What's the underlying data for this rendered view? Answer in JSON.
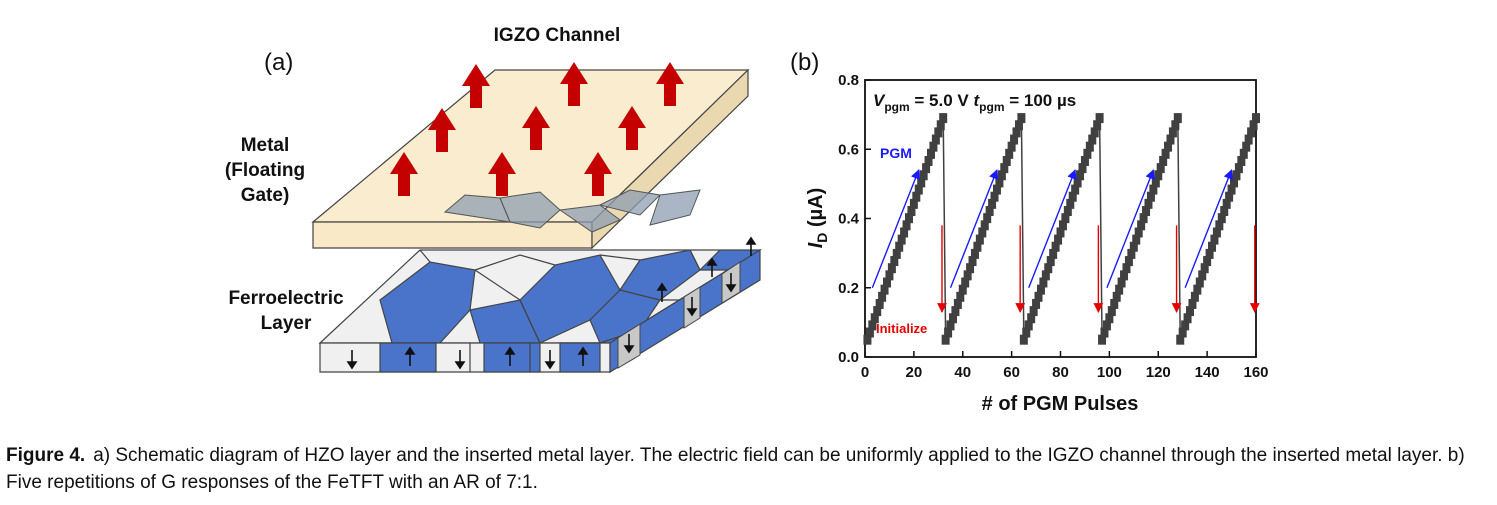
{
  "panel_a": {
    "label": "(a)",
    "top_label": "IGZO Channel",
    "metal_label_lines": [
      "Metal",
      "(Floating",
      "Gate)"
    ],
    "ferro_label_lines": [
      "Ferroelectric",
      "Layer"
    ],
    "colors": {
      "metal": "#f9e9c7",
      "domain_up": "#4a74c9",
      "domain_light": "#f0f0f0",
      "arrow": "#c40000"
    }
  },
  "panel_b": {
    "label": "(b)",
    "annotation_vpgm": "V",
    "annotation_vpgm_sub": "pgm",
    "annotation_vpgm_val": " = 5.0 V ",
    "annotation_tpgm": "t",
    "annotation_tpgm_sub": "pgm",
    "annotation_tpgm_val": " = 100 µs",
    "pgm_label": "PGM",
    "init_label": "Initialize",
    "colors": {
      "data": "#404040",
      "pgm": "#1a1aff",
      "init": "#e60000"
    }
  },
  "chart_data": {
    "type": "line",
    "xlabel": "# of PGM Pulses",
    "ylabel": "I",
    "ylabel_sub": "D",
    "ylabel_unit": " (µA)",
    "xlim": [
      0,
      160
    ],
    "ylim": [
      0,
      0.8
    ],
    "xticks": [
      "0",
      "20",
      "40",
      "60",
      "80",
      "100",
      "120",
      "140",
      "160"
    ],
    "yticks": [
      "0.0",
      "0.2",
      "0.4",
      "0.6",
      "0.8"
    ],
    "series": [
      {
        "x_start": 1,
        "x_end": 32,
        "y_start": 0.05,
        "y_end": 0.69
      },
      {
        "x_start": 33,
        "x_end": 64,
        "y_start": 0.05,
        "y_end": 0.69
      },
      {
        "x_start": 65,
        "x_end": 96,
        "y_start": 0.05,
        "y_end": 0.69
      },
      {
        "x_start": 97,
        "x_end": 128,
        "y_start": 0.05,
        "y_end": 0.69
      },
      {
        "x_start": 129,
        "x_end": 160,
        "y_start": 0.05,
        "y_end": 0.69
      }
    ]
  },
  "caption": {
    "label": "Figure 4.",
    "text": "a) Schematic diagram of HZO layer and the inserted metal layer. The electric field can be uniformly applied to the IGZO channel through the inserted metal layer. b) Five repetitions of G responses of the FeTFT with an AR of 7:1."
  }
}
